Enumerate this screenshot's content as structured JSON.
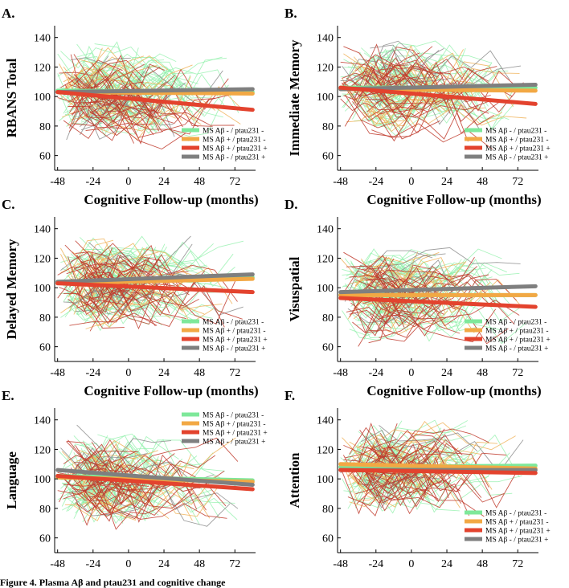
{
  "figure": {
    "caption": "Figure 4. Plasma Aβ and ptau231 and cognitive change",
    "xlabel": "Cognitive Follow-up (months)",
    "legend_labels": [
      "MS Aβ - / ptau231 -",
      "MS Aβ + / ptau231 -",
      "MS Aβ + / ptau231 +",
      "MS Aβ - / ptau231 +"
    ],
    "series_colors": {
      "neg_neg": "#7ee89a",
      "pos_neg": "#f2a844",
      "pos_pos": "#e3432e",
      "neg_pos": "#7f7f7f"
    },
    "individual_colors": {
      "neg_neg": "#8ef0a8",
      "pos_neg": "#f0b35a",
      "pos_pos": "#c0392b",
      "neg_pos": "#8c8c8c"
    }
  },
  "chart_data": [
    {
      "type": "line",
      "panel": "A.",
      "ylabel": "RBANS Total",
      "xlabel": "Cognitive Follow-up (months)",
      "xticks": [
        -48,
        -24,
        0,
        24,
        48,
        72
      ],
      "yticks": [
        60,
        80,
        100,
        120,
        140
      ],
      "xlim": [
        -50,
        86
      ],
      "ylim": [
        50,
        148
      ],
      "legend_position": "bottom-right",
      "series": [
        {
          "name": "MS Aβ - / ptau231 -",
          "x": [
            -48,
            84
          ],
          "y": [
            104,
            103
          ]
        },
        {
          "name": "MS Aβ + / ptau231 -",
          "x": [
            -48,
            84
          ],
          "y": [
            103,
            102
          ]
        },
        {
          "name": "MS Aβ + / ptau231 +",
          "x": [
            -48,
            84
          ],
          "y": [
            103,
            91
          ]
        },
        {
          "name": "MS Aβ - / ptau231 +",
          "x": [
            -48,
            84
          ],
          "y": [
            103,
            105
          ]
        }
      ]
    },
    {
      "type": "line",
      "panel": "B.",
      "ylabel": "Immediate Memory",
      "xlabel": "Cognitive Follow-up (months)",
      "xticks": [
        -48,
        -24,
        0,
        24,
        48,
        72
      ],
      "yticks": [
        60,
        80,
        100,
        120,
        140
      ],
      "xlim": [
        -50,
        86
      ],
      "ylim": [
        50,
        148
      ],
      "legend_position": "bottom-right",
      "series": [
        {
          "name": "MS Aβ - / ptau231 -",
          "x": [
            -48,
            84
          ],
          "y": [
            106,
            106
          ]
        },
        {
          "name": "MS Aβ + / ptau231 -",
          "x": [
            -48,
            84
          ],
          "y": [
            105,
            104
          ]
        },
        {
          "name": "MS Aβ + / ptau231 +",
          "x": [
            -48,
            84
          ],
          "y": [
            106,
            95
          ]
        },
        {
          "name": "MS Aβ - / ptau231 +",
          "x": [
            -48,
            84
          ],
          "y": [
            105,
            108
          ]
        }
      ]
    },
    {
      "type": "line",
      "panel": "C.",
      "ylabel": "Delayed Memory",
      "xlabel": "Cognitive Follow-up (months)",
      "xticks": [
        -48,
        -24,
        0,
        24,
        48,
        72
      ],
      "yticks": [
        60,
        80,
        100,
        120,
        140
      ],
      "xlim": [
        -50,
        86
      ],
      "ylim": [
        50,
        148
      ],
      "legend_position": "bottom-right",
      "series": [
        {
          "name": "MS Aβ - / ptau231 -",
          "x": [
            -48,
            84
          ],
          "y": [
            104,
            107
          ]
        },
        {
          "name": "MS Aβ + / ptau231 -",
          "x": [
            -48,
            84
          ],
          "y": [
            103,
            106
          ]
        },
        {
          "name": "MS Aβ + / ptau231 +",
          "x": [
            -48,
            84
          ],
          "y": [
            103,
            97
          ]
        },
        {
          "name": "MS Aβ - / ptau231 +",
          "x": [
            -48,
            84
          ],
          "y": [
            104,
            109
          ]
        }
      ]
    },
    {
      "type": "line",
      "panel": "D.",
      "ylabel": "Visuspatial",
      "xlabel": "Cognitive Follow-up (months)",
      "xticks": [
        -48,
        -24,
        0,
        24,
        48,
        72
      ],
      "yticks": [
        60,
        80,
        100,
        120,
        140
      ],
      "xlim": [
        -50,
        86
      ],
      "ylim": [
        50,
        148
      ],
      "legend_position": "bottom-right",
      "series": [
        {
          "name": "MS Aβ - / ptau231 -",
          "x": [
            -48,
            84
          ],
          "y": [
            95,
            95
          ]
        },
        {
          "name": "MS Aβ + / ptau231 -",
          "x": [
            -48,
            84
          ],
          "y": [
            95,
            95
          ]
        },
        {
          "name": "MS Aβ + / ptau231 +",
          "x": [
            -48,
            84
          ],
          "y": [
            93,
            87
          ]
        },
        {
          "name": "MS Aβ - / ptau231 +",
          "x": [
            -48,
            84
          ],
          "y": [
            97,
            101
          ]
        }
      ]
    },
    {
      "type": "line",
      "panel": "E.",
      "ylabel": "Language",
      "xlabel": "Cognitive Follow-up (months)",
      "xticks": [
        -48,
        -24,
        0,
        24,
        48,
        72
      ],
      "yticks": [
        60,
        80,
        100,
        120,
        140
      ],
      "xlim": [
        -50,
        86
      ],
      "ylim": [
        50,
        148
      ],
      "legend_position": "top-right",
      "series": [
        {
          "name": "MS Aβ - / ptau231 -",
          "x": [
            -48,
            84
          ],
          "y": [
            102,
            99
          ]
        },
        {
          "name": "MS Aβ + / ptau231 -",
          "x": [
            -48,
            84
          ],
          "y": [
            101,
            98
          ]
        },
        {
          "name": "MS Aβ + / ptau231 +",
          "x": [
            -48,
            84
          ],
          "y": [
            102,
            93
          ]
        },
        {
          "name": "MS Aβ - / ptau231 +",
          "x": [
            -48,
            84
          ],
          "y": [
            106,
            96
          ]
        }
      ]
    },
    {
      "type": "line",
      "panel": "F.",
      "ylabel": "Attention",
      "xlabel": "Cognitive Follow-up (months)",
      "xticks": [
        -48,
        -24,
        0,
        24,
        48,
        72
      ],
      "yticks": [
        60,
        80,
        100,
        120,
        140
      ],
      "xlim": [
        -50,
        86
      ],
      "ylim": [
        50,
        148
      ],
      "legend_position": "bottom-right",
      "series": [
        {
          "name": "MS Aβ - / ptau231 -",
          "x": [
            -48,
            84
          ],
          "y": [
            108,
            109
          ]
        },
        {
          "name": "MS Aβ + / ptau231 -",
          "x": [
            -48,
            84
          ],
          "y": [
            110,
            107
          ]
        },
        {
          "name": "MS Aβ + / ptau231 +",
          "x": [
            -48,
            84
          ],
          "y": [
            106,
            104
          ]
        },
        {
          "name": "MS Aβ - / ptau231 +",
          "x": [
            -48,
            84
          ],
          "y": [
            106,
            106
          ]
        }
      ]
    }
  ]
}
